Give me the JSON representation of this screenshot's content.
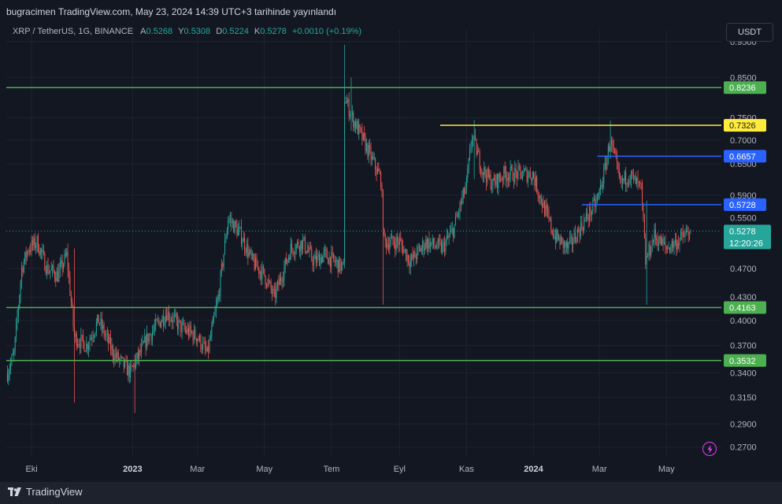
{
  "header": {
    "publisher_line": "bugracimen TradingView.com, May 23, 2024 14:39 UTC+3 tarihinde yayınlandı"
  },
  "legend": {
    "symbol": "XRP / TetherUS, 1G, BINANCE",
    "open_label": "A",
    "open": "0.5268",
    "high_label": "Y",
    "high": "0.5308",
    "low_label": "D",
    "low": "0.5224",
    "close_label": "K",
    "close": "0.5278",
    "change": "+0.0010 (+0.19%)"
  },
  "currency_button": "USDT",
  "footer": {
    "brand": "TradingView"
  },
  "colors": {
    "background": "#131722",
    "up": "#26a69a",
    "down": "#ef5350",
    "support": "#4caf50",
    "yellow": "#ffeb3b",
    "blue": "#2962ff"
  },
  "chart_data": {
    "type": "candlestick",
    "y_scale": "log",
    "ylim": [
      0.262,
      0.985
    ],
    "y_ticks": [
      "0.9500",
      "0.8500",
      "0.7500",
      "0.7000",
      "0.6500",
      "0.5900",
      "0.5500",
      "0.4700",
      "0.4300",
      "0.4000",
      "0.3700",
      "0.3400",
      "0.3150",
      "0.2900",
      "0.2700"
    ],
    "x_ticks": [
      {
        "label": "Eki",
        "date": "2022-10-01"
      },
      {
        "label": "2023",
        "date": "2023-01-01",
        "bold": true
      },
      {
        "label": "Mar",
        "date": "2023-03-01"
      },
      {
        "label": "May",
        "date": "2023-05-01"
      },
      {
        "label": "Tem",
        "date": "2023-07-01"
      },
      {
        "label": "Eyl",
        "date": "2023-09-01"
      },
      {
        "label": "Kas",
        "date": "2023-11-01"
      },
      {
        "label": "2024",
        "date": "2024-01-01",
        "bold": true
      },
      {
        "label": "Mar",
        "date": "2024-03-01"
      },
      {
        "label": "May",
        "date": "2024-05-01"
      }
    ],
    "x_range": [
      "2022-09-08",
      "2024-06-20"
    ],
    "price_path": [
      [
        "2022-09-09",
        0.34
      ],
      [
        "2022-09-15",
        0.36
      ],
      [
        "2022-09-22",
        0.47
      ],
      [
        "2022-09-28",
        0.5
      ],
      [
        "2022-10-06",
        0.51
      ],
      [
        "2022-10-15",
        0.47
      ],
      [
        "2022-10-25",
        0.46
      ],
      [
        "2022-11-02",
        0.49
      ],
      [
        "2022-11-09",
        0.38
      ],
      [
        "2022-11-20",
        0.37
      ],
      [
        "2022-12-01",
        0.4
      ],
      [
        "2022-12-15",
        0.36
      ],
      [
        "2022-12-30",
        0.34
      ],
      [
        "2023-01-15",
        0.38
      ],
      [
        "2023-02-01",
        0.41
      ],
      [
        "2023-02-15",
        0.39
      ],
      [
        "2023-03-01",
        0.38
      ],
      [
        "2023-03-10",
        0.36
      ],
      [
        "2023-03-20",
        0.43
      ],
      [
        "2023-03-29",
        0.55
      ],
      [
        "2023-04-10",
        0.52
      ],
      [
        "2023-04-20",
        0.48
      ],
      [
        "2023-05-01",
        0.46
      ],
      [
        "2023-05-10",
        0.43
      ],
      [
        "2023-05-25",
        0.5
      ],
      [
        "2023-06-05",
        0.51
      ],
      [
        "2023-06-15",
        0.48
      ],
      [
        "2023-06-25",
        0.49
      ],
      [
        "2023-07-12",
        0.47
      ],
      [
        "2023-07-13",
        0.8
      ],
      [
        "2023-07-20",
        0.75
      ],
      [
        "2023-07-30",
        0.7
      ],
      [
        "2023-08-15",
        0.62
      ],
      [
        "2023-08-18",
        0.51
      ],
      [
        "2023-09-01",
        0.51
      ],
      [
        "2023-09-11",
        0.48
      ],
      [
        "2023-09-25",
        0.51
      ],
      [
        "2023-10-10",
        0.5
      ],
      [
        "2023-10-20",
        0.53
      ],
      [
        "2023-11-01",
        0.61
      ],
      [
        "2023-11-06",
        0.71
      ],
      [
        "2023-11-15",
        0.64
      ],
      [
        "2023-11-25",
        0.61
      ],
      [
        "2023-12-05",
        0.63
      ],
      [
        "2023-12-15",
        0.63
      ],
      [
        "2023-12-31",
        0.63
      ],
      [
        "2024-01-10",
        0.57
      ],
      [
        "2024-01-20",
        0.52
      ],
      [
        "2024-02-01",
        0.5
      ],
      [
        "2024-02-15",
        0.54
      ],
      [
        "2024-02-28",
        0.58
      ],
      [
        "2024-03-05",
        0.63
      ],
      [
        "2024-03-11",
        0.7
      ],
      [
        "2024-03-20",
        0.61
      ],
      [
        "2024-03-28",
        0.63
      ],
      [
        "2024-04-08",
        0.6
      ],
      [
        "2024-04-12",
        0.48
      ],
      [
        "2024-04-20",
        0.52
      ],
      [
        "2024-05-01",
        0.5
      ],
      [
        "2024-05-10",
        0.51
      ],
      [
        "2024-05-23",
        0.5278
      ]
    ],
    "notable_wicks": [
      {
        "date": "2023-07-13",
        "high": 0.94,
        "low": 0.47
      },
      {
        "date": "2023-07-19",
        "high": 0.85,
        "low": 0.72
      },
      {
        "date": "2023-08-17",
        "high": 0.58,
        "low": 0.42
      },
      {
        "date": "2023-11-08",
        "high": 0.745,
        "low": 0.62
      },
      {
        "date": "2024-03-11",
        "high": 0.744,
        "low": 0.66
      },
      {
        "date": "2024-04-13",
        "high": 0.58,
        "low": 0.42
      },
      {
        "date": "2022-11-09",
        "high": 0.5,
        "low": 0.31
      },
      {
        "date": "2023-01-03",
        "high": 0.36,
        "low": 0.3
      }
    ],
    "horizontal_levels": [
      {
        "value": 0.8236,
        "label": "0.8236",
        "color": "#4caf50",
        "from": "2022-09-08"
      },
      {
        "value": 0.7326,
        "label": "0.7326",
        "color": "#ffeb3b",
        "from": "2023-10-08"
      },
      {
        "value": 0.6657,
        "label": "0.6657",
        "color": "#2962ff",
        "from": "2024-02-28"
      },
      {
        "value": 0.5728,
        "label": "0.5728",
        "color": "#2962ff",
        "from": "2024-02-14"
      },
      {
        "value": 0.4163,
        "label": "0.4163",
        "color": "#4caf50",
        "from": "2022-09-08"
      },
      {
        "value": 0.3532,
        "label": "0.3532",
        "color": "#4caf50",
        "from": "2022-09-08"
      }
    ],
    "last_price": {
      "value": 0.5278,
      "label": "0.5278",
      "countdown": "12:20:26",
      "color": "#26a69a"
    }
  }
}
